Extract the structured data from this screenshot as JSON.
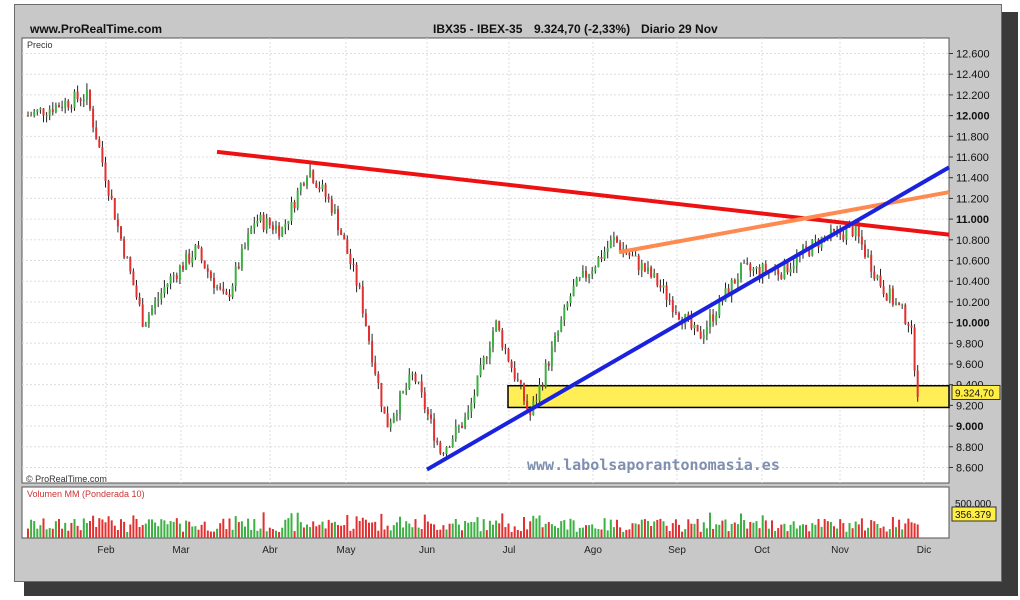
{
  "header": {
    "site": "www.ProRealTime.com",
    "instrument": "IBX35 - IBEX-35",
    "quote": "9.324,70 (-2,33%)",
    "period": "Diario  29 Nov"
  },
  "panel_labels": {
    "price": "Precio",
    "copyright": "© ProRealTime.com",
    "volume": "Volumen MM (Ponderada 10)"
  },
  "watermark": "www.labolsaporantonomasia.es",
  "colors": {
    "up_bar": "#3cb043",
    "down_bar": "#e03030",
    "resistance_line": "#ee1111",
    "support_line": "#1a22dd",
    "channel_line": "#ff8a50",
    "zone_fill": "#ffee55",
    "price_tag": "#ffee44"
  },
  "chart_data": [
    {
      "type": "line",
      "title": "IBX35 - IBEX-35",
      "ylabel": "Precio",
      "ylim": [
        8450,
        12750
      ],
      "x_ticks": [
        "Feb",
        "Mar",
        "Abr",
        "May",
        "Jun",
        "Jul",
        "Ago",
        "Sep",
        "Oct",
        "Nov",
        "Dic"
      ],
      "y_ticks": [
        {
          "value": 12600,
          "label": "12.600"
        },
        {
          "value": 12400,
          "label": "12.400"
        },
        {
          "value": 12200,
          "label": "12.200"
        },
        {
          "value": 12000,
          "label": "12.000"
        },
        {
          "value": 11800,
          "label": "11.800"
        },
        {
          "value": 11600,
          "label": "11.600"
        },
        {
          "value": 11400,
          "label": "11.400"
        },
        {
          "value": 11200,
          "label": "11.200"
        },
        {
          "value": 11000,
          "label": "11.000"
        },
        {
          "value": 10800,
          "label": "10.800"
        },
        {
          "value": 10600,
          "label": "10.600"
        },
        {
          "value": 10400,
          "label": "10.400"
        },
        {
          "value": 10200,
          "label": "10.200"
        },
        {
          "value": 10000,
          "label": "10.000"
        },
        {
          "value": 9800,
          "label": "9.800"
        },
        {
          "value": 9600,
          "label": "9.600"
        },
        {
          "value": 9400,
          "label": "9.400"
        },
        {
          "value": 9200,
          "label": "9.200"
        },
        {
          "value": 9000,
          "label": "9.000"
        },
        {
          "value": 8800,
          "label": "8.800"
        },
        {
          "value": 8600,
          "label": "8.600"
        }
      ],
      "key_points": [
        {
          "date": "Jan",
          "close": 12000
        },
        {
          "date": "Jan",
          "close": 12200
        },
        {
          "date": "Feb",
          "close": 10900
        },
        {
          "date": "Feb",
          "close": 10000
        },
        {
          "date": "Feb",
          "close": 10400
        },
        {
          "date": "Mar",
          "close": 10700
        },
        {
          "date": "Mar",
          "close": 10200
        },
        {
          "date": "Mar",
          "close": 11000
        },
        {
          "date": "Abr",
          "close": 10900
        },
        {
          "date": "Abr",
          "close": 11500
        },
        {
          "date": "Abr",
          "close": 11100
        },
        {
          "date": "May",
          "close": 10300
        },
        {
          "date": "May",
          "close": 9000
        },
        {
          "date": "May",
          "close": 9500
        },
        {
          "date": "Jun",
          "close": 8750
        },
        {
          "date": "Jun",
          "close": 9100
        },
        {
          "date": "Jun",
          "close": 10000
        },
        {
          "date": "Jul",
          "close": 9100
        },
        {
          "date": "Jul",
          "close": 10300
        },
        {
          "date": "Ago",
          "close": 10800
        },
        {
          "date": "Ago",
          "close": 10400
        },
        {
          "date": "Sep",
          "close": 9850
        },
        {
          "date": "Sep",
          "close": 10500
        },
        {
          "date": "Oct",
          "close": 10500
        },
        {
          "date": "Oct",
          "close": 10800
        },
        {
          "date": "Nov",
          "close": 10900
        },
        {
          "date": "Nov",
          "close": 10350
        },
        {
          "date": "Nov",
          "close": 10000
        },
        {
          "date": "Dic",
          "close": 9324.7
        }
      ],
      "last_price": {
        "value": 9324.7,
        "label": "9.324,70"
      },
      "annotations": [
        {
          "kind": "resistance_trendline",
          "color": "red",
          "from": {
            "date": "Mar",
            "value": 11650
          },
          "to": {
            "date": "Dic",
            "value": 10850
          }
        },
        {
          "kind": "support_trendline",
          "color": "blue",
          "from": {
            "date": "Jun",
            "value": 8580
          },
          "to": {
            "date": "Dic",
            "value": 11500
          }
        },
        {
          "kind": "channel_trendline",
          "color": "orange",
          "from": {
            "date": "Ago",
            "value": 10680
          },
          "to": {
            "date": "Dic",
            "value": 11260
          }
        },
        {
          "kind": "support_zone",
          "color": "yellow",
          "from_value": 9180,
          "to_value": 9390
        }
      ]
    },
    {
      "type": "bar",
      "title": "Volumen MM (Ponderada 10)",
      "y_ticks": [
        {
          "value": 500000,
          "label": "500.000"
        }
      ],
      "last_value": {
        "value": 356379,
        "label": "356.379"
      }
    }
  ]
}
